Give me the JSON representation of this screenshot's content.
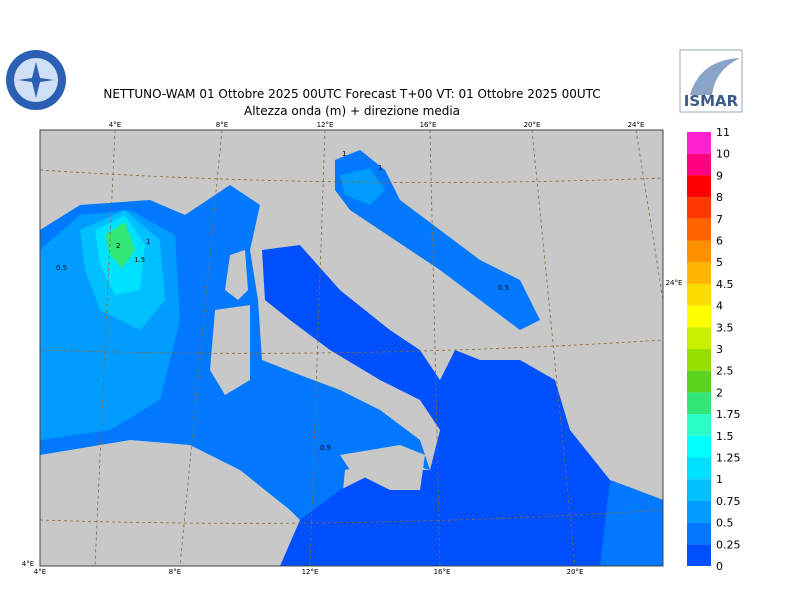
{
  "header": {
    "title": "NETTUNO-WAM  01  Ottobre  2025 00UTC Forecast T+00 VT: 01  Ottobre  2025 00UTC",
    "subtitle": "Altezza onda (m) + direzione media",
    "logo_right": "ISMAR"
  },
  "map": {
    "top_lon_labels": [
      "4°E",
      "8°E",
      "12°E",
      "16°E",
      "20°E",
      "24°E"
    ],
    "bottom_lon_labels": [
      "4°E",
      "8°E",
      "12°E",
      "16°E",
      "20°E"
    ],
    "corner_label": "4°E",
    "right_lat_label": "24°E",
    "contour_labels": [
      "0.5",
      "2",
      "1",
      "1.5",
      "1",
      "1",
      "0.5",
      "0.5"
    ]
  },
  "colorbar": {
    "labels": [
      "11",
      "10",
      "9",
      "8",
      "7",
      "6",
      "5",
      "4.5",
      "4",
      "3.5",
      "3",
      "2.5",
      "2",
      "1.75",
      "1.5",
      "1.25",
      "1",
      "0.75",
      "0.5",
      "0.25",
      "0"
    ],
    "colors": [
      "#ff20d0",
      "#ff0080",
      "#ff0000",
      "#ff3800",
      "#ff6400",
      "#ff9000",
      "#ffb400",
      "#ffdc00",
      "#ffff00",
      "#c8f000",
      "#96e000",
      "#5ad21e",
      "#32e678",
      "#28ffc8",
      "#00ffff",
      "#00e0ff",
      "#00c0ff",
      "#009cff",
      "#0078ff",
      "#0050ff"
    ]
  }
}
